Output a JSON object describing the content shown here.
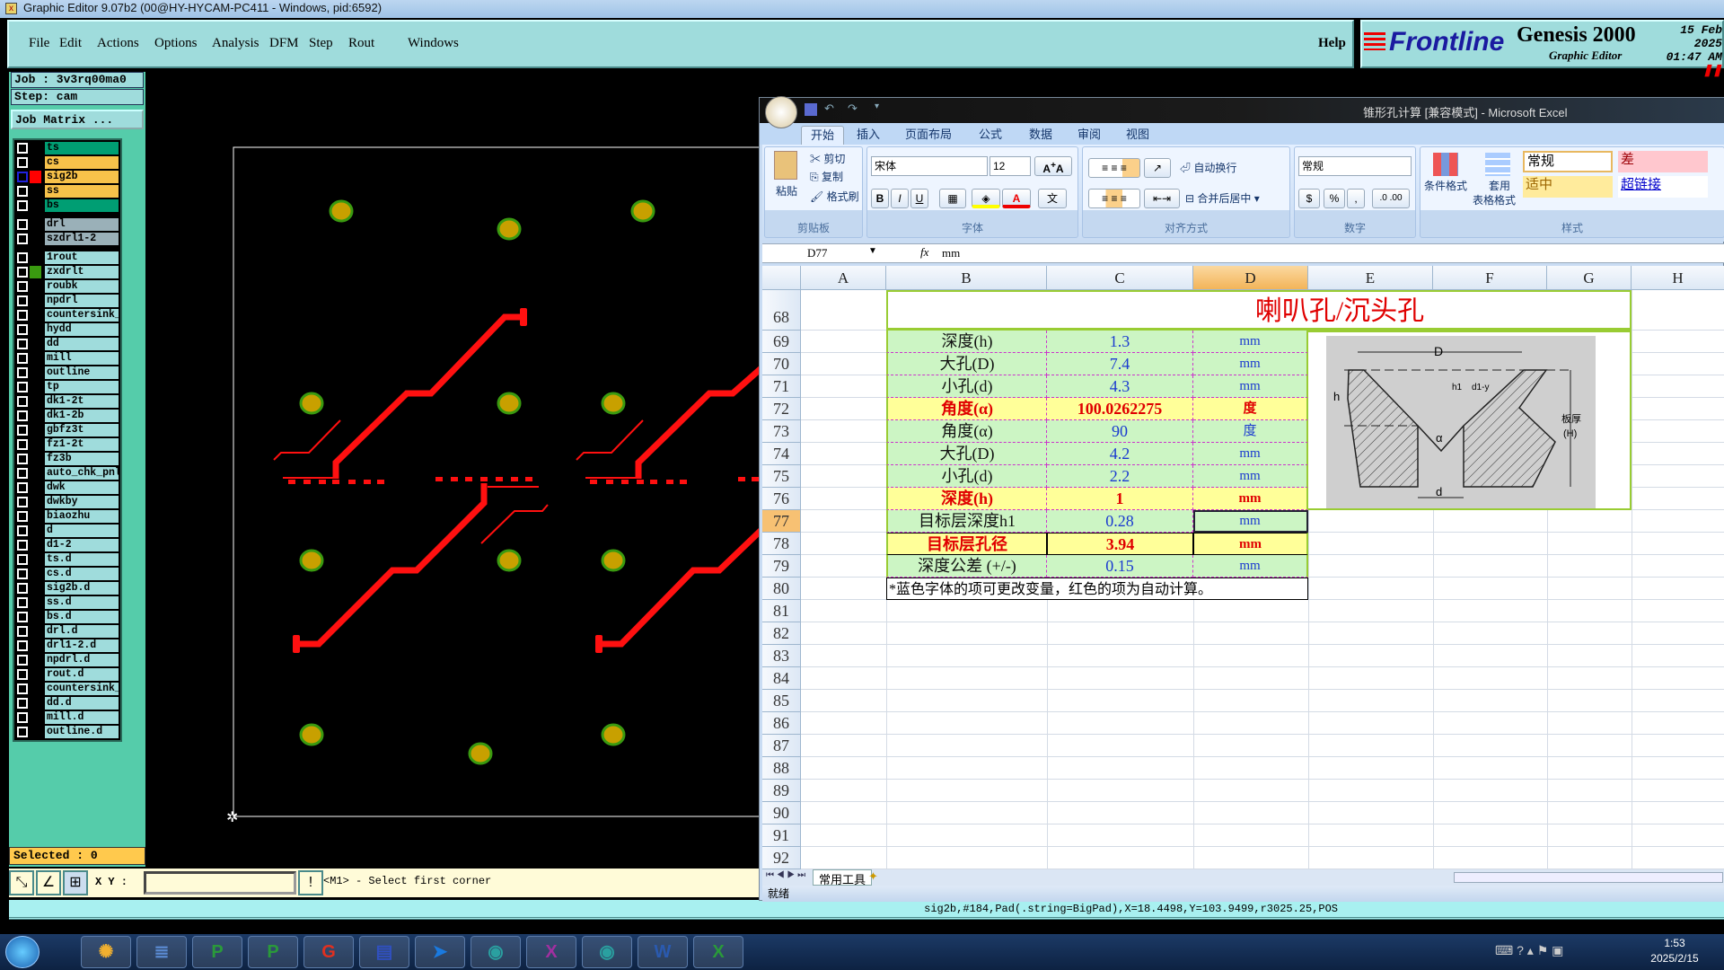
{
  "window": {
    "title": "Graphic Editor 9.07b2 (00@HY-HYCAM-PC411 - Windows, pid:6592)"
  },
  "menu": [
    "File",
    "Edit",
    "Actions",
    "Options",
    "Analysis",
    "DFM",
    "Step",
    "Rout",
    "Windows"
  ],
  "help": "Help",
  "logo": {
    "brand": "Frontline",
    "product": "Genesis 2000",
    "subtitle": "Graphic Editor",
    "date": "15 Feb 2025",
    "time": "01:47 AM"
  },
  "job": {
    "job_label": "Job : 3v3rq00ma0",
    "step_label": "Step: cam",
    "matrix_button": "Job Matrix ..."
  },
  "layer_colors": {
    "signal": "#009e73",
    "mask": "#f7c24a",
    "drill": "#9ab0b8",
    "misc": "#9fdcdc",
    "active": "#ff0000",
    "affected": "#3a9a10"
  },
  "layers": [
    {
      "name": "ts",
      "type": "signal"
    },
    {
      "name": "cs",
      "type": "mask"
    },
    {
      "name": "sig2b",
      "type": "mask",
      "indicator": "active",
      "selected": true
    },
    {
      "name": "ss",
      "type": "mask"
    },
    {
      "name": "bs",
      "type": "signal"
    },
    {
      "name": "drl",
      "type": "drill"
    },
    {
      "name": "szdrl1-2",
      "type": "drill"
    },
    {
      "name": "1rout",
      "type": "misc"
    },
    {
      "name": "zxdrlt",
      "type": "misc",
      "indicator": "affected"
    },
    {
      "name": "roubk",
      "type": "misc"
    },
    {
      "name": "npdrl",
      "type": "misc"
    },
    {
      "name": "countersink_",
      "type": "misc"
    },
    {
      "name": "hydd",
      "type": "misc"
    },
    {
      "name": "dd",
      "type": "misc"
    },
    {
      "name": "mill",
      "type": "misc"
    },
    {
      "name": "outline",
      "type": "misc"
    },
    {
      "name": "tp",
      "type": "misc"
    },
    {
      "name": "dk1-2t",
      "type": "misc"
    },
    {
      "name": "dk1-2b",
      "type": "misc"
    },
    {
      "name": "gbfz3t",
      "type": "misc"
    },
    {
      "name": "fz1-2t",
      "type": "misc"
    },
    {
      "name": "fz3b",
      "type": "misc"
    },
    {
      "name": "auto_chk_pnl",
      "type": "misc"
    },
    {
      "name": "dwk",
      "type": "misc"
    },
    {
      "name": "dwkby",
      "type": "misc"
    },
    {
      "name": "biaozhu",
      "type": "misc"
    },
    {
      "name": "d",
      "type": "misc"
    },
    {
      "name": "d1-2",
      "type": "misc"
    },
    {
      "name": "ts.d",
      "type": "misc"
    },
    {
      "name": "cs.d",
      "type": "misc"
    },
    {
      "name": "sig2b.d",
      "type": "misc"
    },
    {
      "name": "ss.d",
      "type": "misc"
    },
    {
      "name": "bs.d",
      "type": "misc"
    },
    {
      "name": "drl.d",
      "type": "misc"
    },
    {
      "name": "drl1-2.d",
      "type": "misc"
    },
    {
      "name": "npdrl.d",
      "type": "misc"
    },
    {
      "name": "rout.d",
      "type": "misc"
    },
    {
      "name": "countersink_",
      "type": "misc"
    },
    {
      "name": "dd.d",
      "type": "misc"
    },
    {
      "name": "mill.d",
      "type": "misc"
    },
    {
      "name": "outline.d",
      "type": "misc"
    }
  ],
  "selected_count": "Selected : 0",
  "toolbar": {
    "xy_label": "X Y :",
    "xy_value": "",
    "prompt": "<M1> - Select first corner"
  },
  "status_line": "sig2b,#184,Pad(.string=BigPad),X=18.4498,Y=103.9499,r3025.25,POS",
  "pcb_colors": {
    "trace": "#ff1010",
    "pad_fill": "#c8a000",
    "pad_ring": "#3a9a10",
    "board_outline": "#ffffff"
  },
  "excel": {
    "title": "锥形孔计算  [兼容模式] - Microsoft Excel",
    "tabs": [
      "开始",
      "插入",
      "页面布局",
      "公式",
      "数据",
      "审阅",
      "视图"
    ],
    "active_tab": "开始",
    "clipboard": {
      "paste": "粘贴",
      "cut": "剪切",
      "copy": "复制",
      "format_painter": "格式刷",
      "group": "剪贴板"
    },
    "font": {
      "name": "宋体",
      "size": "12",
      "group": "字体",
      "bold": "B",
      "italic": "I",
      "underline": "U"
    },
    "alignment": {
      "wrap": "自动换行",
      "merge": "合并后居中",
      "group": "对齐方式"
    },
    "number": {
      "format": "常规",
      "percent": "%",
      "comma": ",",
      "group": "数字"
    },
    "styles": {
      "conditional": "条件格式",
      "table_format_1": "套用",
      "table_format_2": "表格格式",
      "normal": "常规",
      "bad": "差",
      "neutral": "适中",
      "hyperlink": "超链接",
      "group": "样式"
    },
    "name_box": "D77",
    "formula": "mm",
    "columns": [
      "A",
      "B",
      "C",
      "D",
      "E",
      "F",
      "G",
      "H"
    ],
    "selected_column": "D",
    "title_row": {
      "row": "68",
      "text": "喇叭孔/沉头孔"
    },
    "rows": [
      {
        "row": "69",
        "label": "深度(h)",
        "value": "1.3",
        "unit": "mm",
        "style": "input"
      },
      {
        "row": "70",
        "label": "大孔(D)",
        "value": "7.4",
        "unit": "mm",
        "style": "input"
      },
      {
        "row": "71",
        "label": "小孔(d)",
        "value": "4.3",
        "unit": "mm",
        "style": "input"
      },
      {
        "row": "72",
        "label": "角度(α)",
        "value": "100.0262275",
        "unit": "度",
        "style": "calc"
      },
      {
        "row": "73",
        "label": "角度(α)",
        "value": "90",
        "unit": "度",
        "style": "input"
      },
      {
        "row": "74",
        "label": "大孔(D)",
        "value": "4.2",
        "unit": "mm",
        "style": "input"
      },
      {
        "row": "75",
        "label": "小孔(d)",
        "value": "2.2",
        "unit": "mm",
        "style": "input"
      },
      {
        "row": "76",
        "label": "深度(h)",
        "value": "1",
        "unit": "mm",
        "style": "calc"
      },
      {
        "row": "77",
        "label": "目标层深度h1",
        "value": "0.28",
        "unit": "mm",
        "style": "input",
        "selected": true
      },
      {
        "row": "78",
        "label": "目标层孔径",
        "value": "3.94",
        "unit": "mm",
        "style": "calc"
      },
      {
        "row": "79",
        "label": "深度公差 (+/-)",
        "value": "0.15",
        "unit": "mm",
        "style": "input"
      }
    ],
    "note_row": {
      "row": "80",
      "text": "*蓝色字体的项可更改变量，红色的项为自动计算。"
    },
    "empty_rows": [
      "81",
      "82",
      "83",
      "84",
      "85",
      "86",
      "87",
      "88",
      "89",
      "90",
      "91",
      "92"
    ],
    "diagram_labels": {
      "D": "D",
      "h1": "h1",
      "d1": "d1-y",
      "h": "h",
      "alpha": "α",
      "d": "d",
      "thickness": "板厚",
      "H": "(H)"
    },
    "sheet_tab": "常用工具",
    "status": "就绪",
    "colors": {
      "input_bg": "#ccf5c4",
      "calc_bg": "#ffff99",
      "input_text": "#1a3ad0",
      "calc_text": "#e00000",
      "title_text": "#e00000",
      "border": "#99cc33"
    }
  },
  "taskbar": {
    "apps": [
      "shell-icon",
      "notepad-icon",
      "p-app-icon",
      "p-app2-icon",
      "g-app-icon",
      "save-app-icon",
      "arrow-app-icon",
      "genesis-icon",
      "x-app-icon",
      "genesis2-icon",
      "word-icon",
      "excel-icon"
    ],
    "time": "1:53",
    "date": "2025/2/15"
  }
}
